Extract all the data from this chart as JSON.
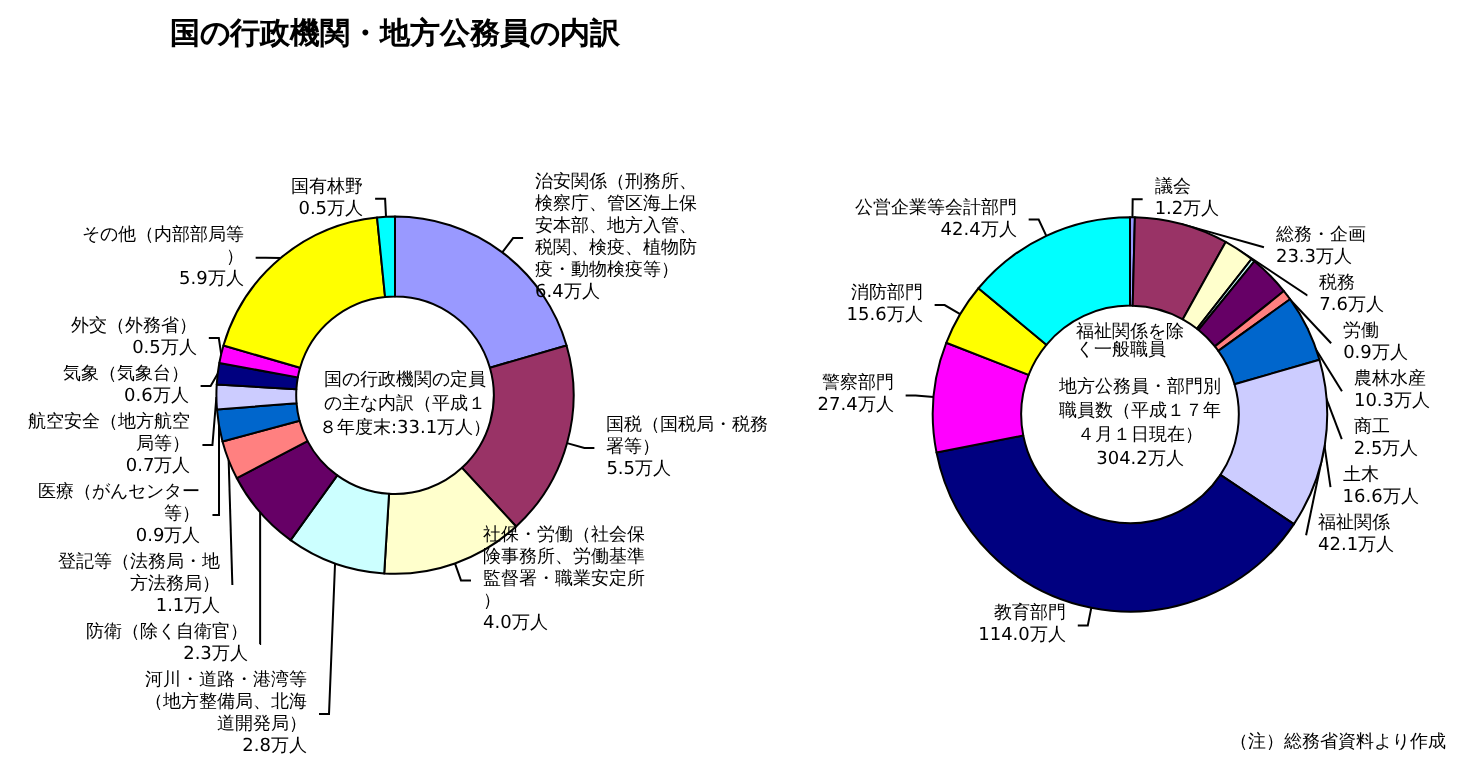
{
  "chart_data": [
    {
      "type": "donut",
      "title": "国の行政機関・地方公務員の内訳",
      "subtitle": "国の行政機関の定員の主な内訳（平成１８年度末:33.1万人）",
      "categories": [
        "治安関係（刑務所、検察庁、管区海上保安本部、地方入管、税関、検疫、植物防疫・動物検疫等）",
        "国税（国税局・税務署等）",
        "社保・労働（社会保険事務所、労働基準監督署・職業安定所）",
        "河川・道路・港湾等（地方整備局、北海道開発局）",
        "防衛（除く自衛官）",
        "登記等（法務局・地方法務局）",
        "医療（がんセンター等）",
        "航空安全（地方航空局等）",
        "気象（気象台）",
        "外交（外務省）",
        "その他（内部部局等）",
        "国有林野"
      ],
      "values": [
        6.4,
        5.5,
        4.0,
        2.8,
        2.3,
        1.1,
        0.9,
        0.7,
        0.6,
        0.5,
        5.9,
        0.5
      ],
      "value_labels": [
        "6.4万人",
        "5.5万人",
        "4.0万人",
        "2.8万人",
        "2.3万人",
        "1.1万人",
        "0.9万人",
        "0.7万人",
        "0.6万人",
        "0.5万人",
        "5.9万人",
        "0.5万人"
      ],
      "colors": [
        "#9999ff",
        "#993366",
        "#ffffcc",
        "#ccffff",
        "#660066",
        "#ff8080",
        "#0066cc",
        "#ccccff",
        "#000080",
        "#ff00ff",
        "#ffff00",
        "#00ffff"
      ]
    },
    {
      "type": "donut",
      "subtitle": "地方公務員・部門別職員数（平成１７年４月１日現在）304.2万人",
      "categories": [
        "議会",
        "総務・企画",
        "税務",
        "労働",
        "農林水産",
        "商工",
        "土木",
        "福祉関係",
        "教育部門",
        "警察部門",
        "消防部門",
        "公営企業等会計部門"
      ],
      "values": [
        1.2,
        23.3,
        7.6,
        0.9,
        10.3,
        2.5,
        16.6,
        42.1,
        114.0,
        27.4,
        15.6,
        42.4
      ],
      "value_labels": [
        "1.2万人",
        "23.3万人",
        "7.6万人",
        "0.9万人",
        "10.3万人",
        "2.5万人",
        "16.6万人",
        "42.1万人",
        "114.0万人",
        "27.4万人",
        "15.6万人",
        "42.4万人"
      ],
      "colors": [
        "#9999ff",
        "#993366",
        "#ffffcc",
        "#ccffff",
        "#660066",
        "#ff8080",
        "#0066cc",
        "#ccccff",
        "#000080",
        "#ff00ff",
        "#ffff00",
        "#00ffff"
      ],
      "annotations": [
        "福祉関係を除く一般職員",
        "（注）総務省資料より作成"
      ]
    }
  ]
}
